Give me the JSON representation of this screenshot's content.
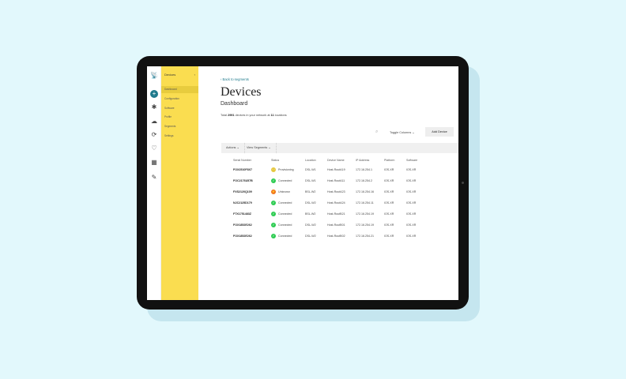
{
  "colors": {
    "background": "#e2f8fc",
    "sidebar": "#fadd50",
    "accent": "#1f7a8c",
    "connected": "#2ecc52",
    "provisioning": "#e6c840",
    "unknown": "#f0731e"
  },
  "rail_icons": [
    "satellite-dish-icon",
    "plus-icon",
    "network-icon",
    "cloud-icon",
    "refresh-icon",
    "heart-icon",
    "qr-grid-icon",
    "wrench-icon"
  ],
  "sidebar": {
    "title": "Devices",
    "items": [
      {
        "label": "Dashboard",
        "active": true
      },
      {
        "label": "Configuration"
      },
      {
        "label": "Software"
      },
      {
        "label": "Profile"
      },
      {
        "label": "Segments"
      },
      {
        "label": "Settings"
      }
    ]
  },
  "main": {
    "back_link": "‹ Back to segments",
    "title": "Devices",
    "subtitle": "Dashboard",
    "total": {
      "prefix": "Total ",
      "devices": "2991",
      "middle": " devices in your network at ",
      "locations": "11",
      "suffix": " locations"
    },
    "toggle_columns": "Toggle Columns ⌄",
    "add_device": "Add Device",
    "actions": "Actions ⌄",
    "view_segments": "View Segments ⌄"
  },
  "table": {
    "headers": [
      "Serial Number",
      "Status",
      "Location",
      "Device Name",
      "IP Address",
      "Platform",
      "Software"
    ],
    "rows": [
      {
        "serial": "FOX2510F8X7",
        "status": "Provisioning",
        "location": "DSL-W1",
        "name": "Host-RoutA19",
        "ip": "172.16.254.1",
        "platform": "IOS-XR",
        "software": "IOS-XR"
      },
      {
        "serial": "FOC2176U57B",
        "status": "Connected",
        "location": "DSL-W1",
        "name": "Host-RoutA11",
        "ip": "172.16.254.2",
        "platform": "IOS-XR",
        "software": "IOS-XR"
      },
      {
        "serial": "FXS2120Q109",
        "status": "Unknown",
        "location": "BSL-W2",
        "name": "Host-RoutA23",
        "ip": "172.16.254.16",
        "platform": "IOS-XR",
        "software": "IOS-XR"
      },
      {
        "serial": "NJC2125D179",
        "status": "Connected",
        "location": "DSL-W2",
        "name": "Host-RoutA24",
        "ip": "172.16.254.11",
        "platform": "IOS-XR",
        "software": "IOS-XR"
      },
      {
        "serial": "FTX1751483Z",
        "status": "Connected",
        "location": "BSL-W2",
        "name": "Host-RoutB21",
        "ip": "172.16.254.19",
        "platform": "IOS-XR",
        "software": "IOS-XR"
      },
      {
        "serial": "FOX1852E262",
        "status": "Connected",
        "location": "DSL-W2",
        "name": "Host-RoutB01",
        "ip": "172.16.254.19",
        "platform": "IOS-XR",
        "software": "IOS-XR"
      },
      {
        "serial": "FOX1852E262",
        "status": "Connected",
        "location": "DSL-W2",
        "name": "Host-RoutB02",
        "ip": "172.16.254.21",
        "platform": "IOS-XR",
        "software": "IOS-XR"
      }
    ]
  }
}
